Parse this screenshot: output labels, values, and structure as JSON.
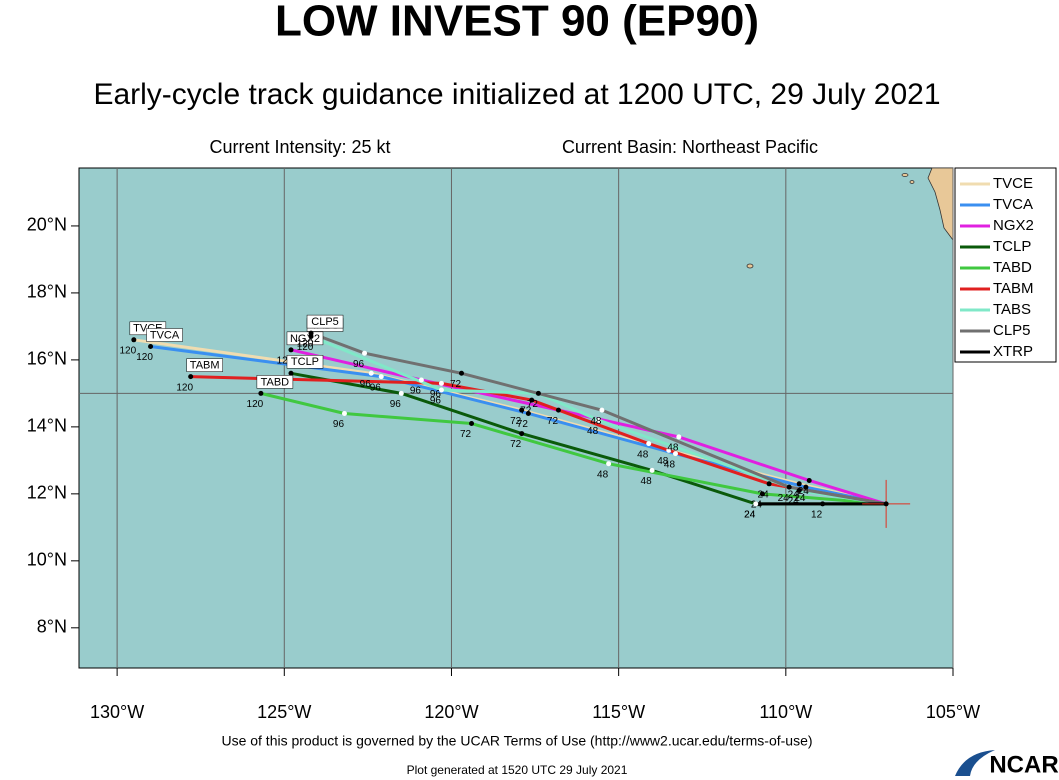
{
  "chart_data": {
    "type": "track-map",
    "title": "LOW INVEST 90 (EP90)",
    "subtitle": "Early-cycle track guidance initialized at 1200 UTC, 29 July 2021",
    "annotations": [
      "Current Intensity: 25 kt",
      "Current Basin: Northeast Pacific"
    ],
    "xlim": [
      -131.14,
      -105
    ],
    "ylim": [
      6.8,
      21.73
    ],
    "xticks": [
      {
        "value": -130,
        "label": "130°W"
      },
      {
        "value": -125,
        "label": "125°W"
      },
      {
        "value": -120,
        "label": "120°W"
      },
      {
        "value": -115,
        "label": "115°W"
      },
      {
        "value": -110,
        "label": "110°W"
      },
      {
        "value": -105,
        "label": "105°W"
      }
    ],
    "yticks": [
      {
        "value": 8,
        "label": "8°N"
      },
      {
        "value": 10,
        "label": "10°N"
      },
      {
        "value": 12,
        "label": "12°N"
      },
      {
        "value": 14,
        "label": "14°N"
      },
      {
        "value": 16,
        "label": "16°N"
      },
      {
        "value": 18,
        "label": "18°N"
      },
      {
        "value": 20,
        "label": "20°N"
      }
    ],
    "grid": true,
    "hgrid": [
      15
    ],
    "legend": "right",
    "current_position": {
      "x": -107.0,
      "y": 11.7,
      "color": "#e03020"
    },
    "series": [
      {
        "name": "TVCE",
        "color": "#f0dcb0",
        "x": [
          -107.0,
          -109.6,
          -113.5,
          -117.9,
          -122.4,
          -129.5
        ],
        "y": [
          11.7,
          12.3,
          13.3,
          14.5,
          15.6,
          16.6
        ],
        "hours": [
          0,
          24,
          48,
          72,
          96,
          120
        ]
      },
      {
        "name": "TVCA",
        "color": "#3a8ff0",
        "x": [
          -107.0,
          -109.4,
          -113.3,
          -117.7,
          -122.1,
          -129.0
        ],
        "y": [
          11.7,
          12.2,
          13.2,
          14.4,
          15.5,
          16.4
        ],
        "hours": [
          0,
          24,
          48,
          72,
          96,
          120
        ]
      },
      {
        "name": "NGX2",
        "color": "#e020e0",
        "x": [
          -107.0,
          -109.3,
          -113.2,
          -116.8,
          -120.9,
          -124.8
        ],
        "y": [
          11.7,
          12.4,
          13.7,
          14.5,
          15.4,
          16.3
        ],
        "hours": [
          0,
          24,
          48,
          72,
          96,
          120
        ]
      },
      {
        "name": "TCLP",
        "color": "#0a5a0a",
        "x": [
          -107.0,
          -110.9,
          -114.0,
          -117.9,
          -121.5,
          -124.8
        ],
        "y": [
          11.7,
          11.7,
          12.7,
          13.8,
          15.0,
          15.6
        ],
        "hours": [
          0,
          24,
          48,
          72,
          96,
          120
        ]
      },
      {
        "name": "TABD",
        "color": "#40c840",
        "x": [
          -107.0,
          -110.7,
          -115.3,
          -119.4,
          -123.2,
          -125.7
        ],
        "y": [
          11.7,
          12.0,
          12.9,
          14.1,
          14.4,
          15.0
        ],
        "hours": [
          0,
          24,
          48,
          72,
          96,
          120
        ]
      },
      {
        "name": "TABM",
        "color": "#e02020",
        "x": [
          -107.0,
          -110.5,
          -114.1,
          -117.6,
          -120.3,
          -127.8
        ],
        "y": [
          11.7,
          12.3,
          13.5,
          14.8,
          15.3,
          15.5
        ],
        "hours": [
          0,
          24,
          48,
          72,
          96,
          120
        ]
      },
      {
        "name": "TABS",
        "color": "#80e8c8",
        "x": [
          -107.0,
          -109.6,
          -115.6,
          -117.4,
          -120.3,
          -124.2
        ],
        "y": [
          11.7,
          12.1,
          14.2,
          15.0,
          15.1,
          16.7
        ],
        "hours": [
          0,
          24,
          48,
          72,
          96,
          120
        ]
      },
      {
        "name": "CLP5",
        "color": "#707070",
        "x": [
          -107.0,
          -109.9,
          -115.5,
          -119.7,
          -122.6,
          -124.2
        ],
        "y": [
          11.7,
          12.2,
          14.5,
          15.6,
          16.2,
          16.8
        ],
        "hours": [
          0,
          24,
          48,
          72,
          96,
          120
        ]
      },
      {
        "name": "XTRP",
        "color": "#000000",
        "x": [
          -107.0,
          -108.9,
          -110.9
        ],
        "y": [
          11.7,
          11.7,
          11.7
        ],
        "hours": [
          0,
          12,
          24
        ]
      }
    ]
  },
  "footer": {
    "terms": "Use of this product is governed by the UCAR Terms of Use (http://www2.ucar.edu/terms-of-use)",
    "generated": "Plot generated at 1520 UTC  29 July 2021",
    "logo": "NCAR"
  }
}
